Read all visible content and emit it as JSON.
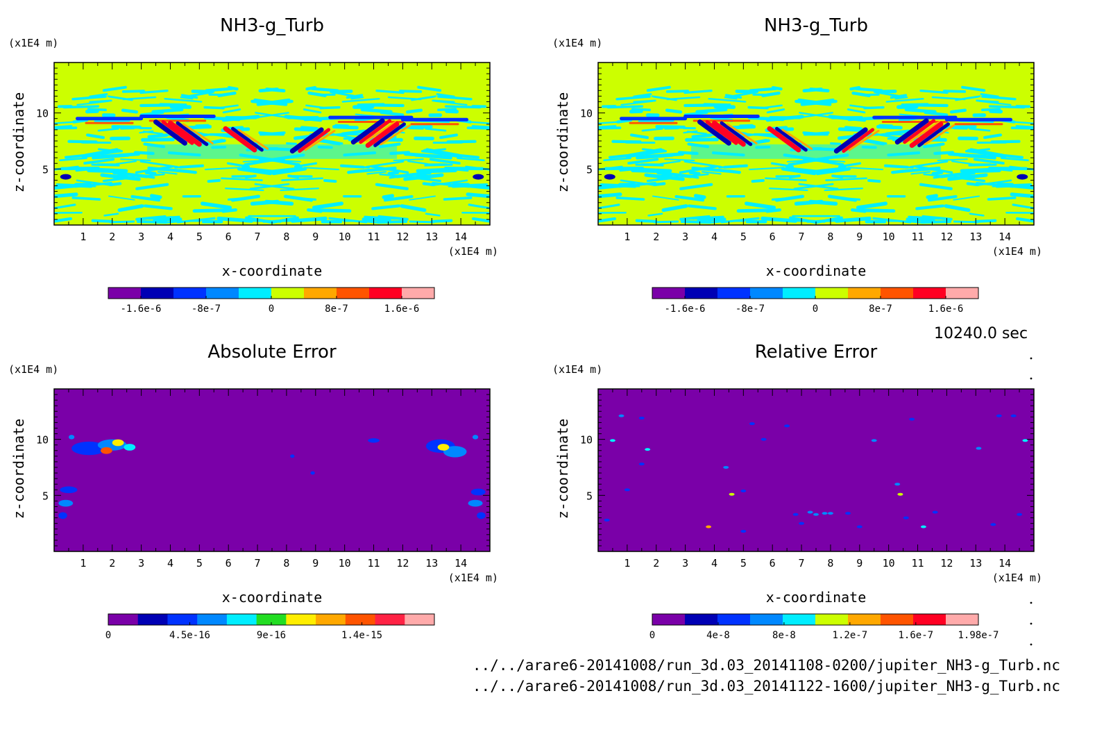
{
  "chart_data": [
    {
      "type": "heatmap",
      "title": "NH3-g_Turb",
      "xlabel": "x-coordinate",
      "ylabel": "z-coordinate",
      "x_unit": "(x1E4 m)",
      "y_unit": "(x1E4 m)",
      "xlim": [
        0,
        15
      ],
      "ylim": [
        0,
        14.5
      ],
      "x_ticks": [
        1,
        2,
        3,
        4,
        5,
        6,
        7,
        8,
        9,
        10,
        11,
        12,
        13,
        14
      ],
      "y_ticks": [
        5,
        10
      ],
      "colorbar": {
        "range": [
          -2e-06,
          2e-06
        ],
        "labels": [
          "-1.6e-6",
          "-8e-7",
          "0",
          "8e-7",
          "1.6e-6"
        ],
        "colors": [
          "#7a00a8",
          "#0000b4",
          "#0032ff",
          "#0088ff",
          "#00eeff",
          "#ccff00",
          "#ffa800",
          "#ff5400",
          "#ff0022",
          "#ffaaaa"
        ]
      },
      "background_color": "#ccff00"
    },
    {
      "type": "heatmap",
      "title": "NH3-g_Turb",
      "xlabel": "x-coordinate",
      "ylabel": "z-coordinate",
      "x_unit": "(x1E4 m)",
      "y_unit": "(x1E4 m)",
      "xlim": [
        0,
        15
      ],
      "ylim": [
        0,
        14.5
      ],
      "x_ticks": [
        1,
        2,
        3,
        4,
        5,
        6,
        7,
        8,
        9,
        10,
        11,
        12,
        13,
        14
      ],
      "y_ticks": [
        5,
        10
      ],
      "colorbar": {
        "range": [
          -2e-06,
          2e-06
        ],
        "labels": [
          "-1.6e-6",
          "-8e-7",
          "0",
          "8e-7",
          "1.6e-6"
        ],
        "colors": [
          "#7a00a8",
          "#0000b4",
          "#0032ff",
          "#0088ff",
          "#00eeff",
          "#ccff00",
          "#ffa800",
          "#ff5400",
          "#ff0022",
          "#ffaaaa"
        ]
      },
      "background_color": "#ccff00"
    },
    {
      "type": "heatmap",
      "title": "Absolute Error",
      "xlabel": "x-coordinate",
      "ylabel": "z-coordinate",
      "x_unit": "(x1E4 m)",
      "y_unit": "(x1E4 m)",
      "xlim": [
        0,
        15
      ],
      "ylim": [
        0,
        14.5
      ],
      "x_ticks": [
        1,
        2,
        3,
        4,
        5,
        6,
        7,
        8,
        9,
        10,
        11,
        12,
        13,
        14
      ],
      "y_ticks": [
        5,
        10
      ],
      "colorbar": {
        "range": [
          0,
          1.8e-15
        ],
        "labels": [
          "0",
          "4.5e-16",
          "9e-16",
          "1.4e-15"
        ],
        "colors": [
          "#7a00a8",
          "#0000b4",
          "#0032ff",
          "#0088ff",
          "#00eeff",
          "#22dd22",
          "#ffee00",
          "#ffa800",
          "#ff5400",
          "#ff2244",
          "#ffaaaa"
        ]
      },
      "background_color": "#7a00a8"
    },
    {
      "type": "heatmap",
      "title": "Relative Error",
      "xlabel": "x-coordinate",
      "ylabel": "z-coordinate",
      "x_unit": "(x1E4 m)",
      "y_unit": "(x1E4 m)",
      "xlim": [
        0,
        15
      ],
      "ylim": [
        0,
        14.5
      ],
      "x_ticks": [
        1,
        2,
        3,
        4,
        5,
        6,
        7,
        8,
        9,
        10,
        11,
        12,
        13,
        14
      ],
      "y_ticks": [
        5,
        10
      ],
      "colorbar": {
        "range": [
          0,
          1.98e-07
        ],
        "labels": [
          "0",
          "4e-8",
          "8e-8",
          "1.2e-7",
          "1.6e-7",
          "1.98e-7"
        ],
        "colors": [
          "#7a00a8",
          "#0000b4",
          "#0032ff",
          "#0088ff",
          "#00eeff",
          "#ccff00",
          "#ffa800",
          "#ff5400",
          "#ff0022",
          "#ffaaaa"
        ]
      },
      "background_color": "#7a00a8"
    }
  ],
  "time_label": "10240.0 sec",
  "footer_lines": [
    "../../arare6-20141008/run_3d.03_20141108-0200/jupiter_NH3-g_Turb.nc",
    "../../arare6-20141008/run_3d.03_20141122-1600/jupiter_NH3-g_Turb.nc"
  ]
}
